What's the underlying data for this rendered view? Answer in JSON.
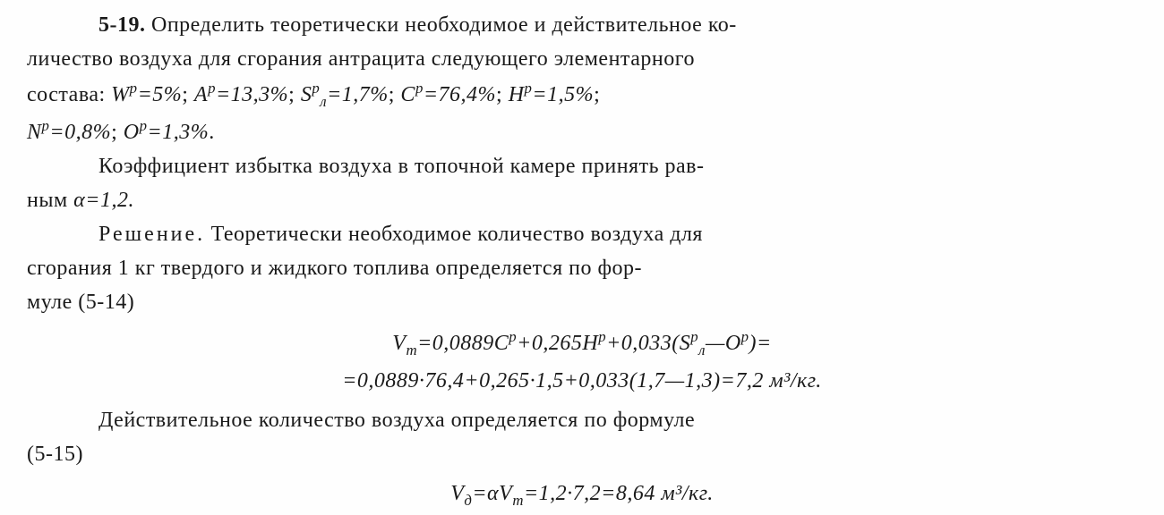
{
  "problem": {
    "number": "5-19.",
    "text1": "Определить теоретически необходимое и действительное ко-",
    "text2": "личество воздуха для сгорания антрацита следующего элементарного",
    "text3_prefix": "состава: ",
    "composition": {
      "W": "Wᵖ=5%",
      "A": "Aᵖ=13,3%",
      "S": "Sᵖ",
      "S_sub": "л",
      "S_val": "=1,7%",
      "C": "Cᵖ=76,4%",
      "H": "Hᵖ=1,5%",
      "N": "Nᵖ=0,8%",
      "O": "Oᵖ=1,3%"
    }
  },
  "coeff": {
    "text1": "Коэффициент избытка воздуха в топочной камере принять рав-",
    "text2_prefix": "ным ",
    "alpha": "α=1,2."
  },
  "solution": {
    "label": "Решение.",
    "text1": " Теоретически необходимое количество воздуха для",
    "text2": "сгорания 1 кг твердого и жидкого топлива определяется по фор-",
    "text3": "муле (5-14)"
  },
  "formula1": {
    "line1_a": "V",
    "line1_sub": "т",
    "line1_b": "=0,0889Cᵖ+0,265Hᵖ+0,033(Sᵖ",
    "line1_c": "—Oᵖ)=",
    "line2": "=0,0889·76,4+0,265·1,5+0,033(1,7—1,3)=7,2 м³/кг."
  },
  "actual": {
    "text1": "Действительное количество воздуха определяется по формуле",
    "text2": "(5-15)"
  },
  "formula2": {
    "V_d": "V",
    "d_sub": "д",
    "eq": "=α",
    "V_t": "V",
    "t_sub": "т",
    "rest": "=1,2·7,2=8,64 м³/кг."
  },
  "style": {
    "background": "#fefefe",
    "text_color": "#1a1a1a",
    "font_size": 24,
    "font_family": "Times New Roman"
  }
}
